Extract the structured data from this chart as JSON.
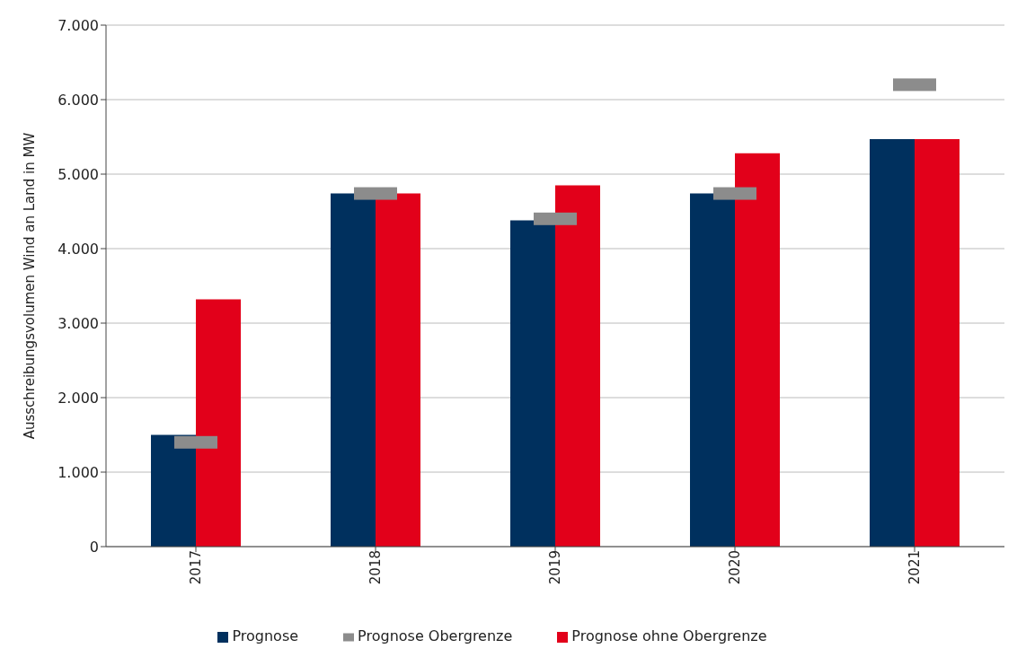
{
  "chart_data": {
    "type": "bar",
    "ylabel": "Ausschreibungsvolumen  Wind an Land  in MW",
    "categories": [
      "2017",
      "2018",
      "2019",
      "2020",
      "2021"
    ],
    "series": [
      {
        "name": "Prognose",
        "color": "#00305e",
        "values": [
          1500,
          4740,
          4380,
          4740,
          5470
        ]
      },
      {
        "name": "Prognose ohne Obergrenze",
        "color": "#e2001a",
        "values": [
          3320,
          4740,
          4850,
          5280,
          5470
        ]
      },
      {
        "name": "Prognose Obergrenze",
        "type": "scatter",
        "color": "#8c8c8c",
        "values": [
          1400,
          4740,
          4400,
          4740,
          6200
        ]
      }
    ],
    "ylim": [
      0,
      7000
    ],
    "yticks": [
      {
        "value": 0,
        "label": "0"
      },
      {
        "value": 1000,
        "label": "1.000"
      },
      {
        "value": 2000,
        "label": "2.000"
      },
      {
        "value": 3000,
        "label": "3.000"
      },
      {
        "value": 4000,
        "label": "4.000"
      },
      {
        "value": 5000,
        "label": "5.000"
      },
      {
        "value": 6000,
        "label": "6.000"
      },
      {
        "value": 7000,
        "label": "7.000"
      }
    ],
    "grid": "y",
    "legend": "bottom"
  }
}
